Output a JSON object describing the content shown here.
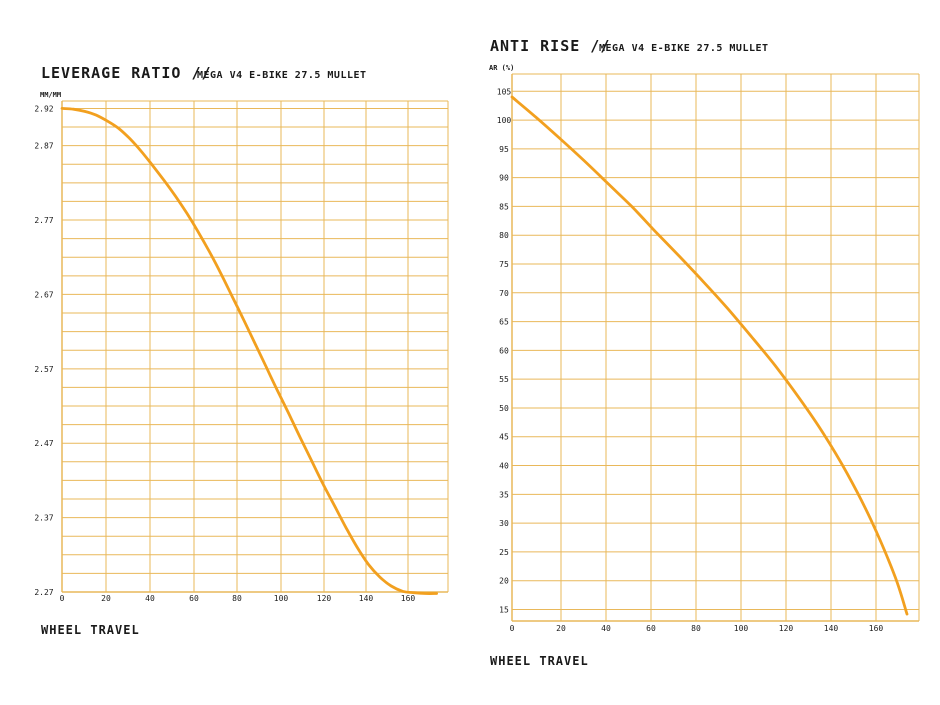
{
  "colors": {
    "curve": "#f2a01f",
    "grid": "#e9b85a",
    "text": "#1a1a1a",
    "background": "#ffffff"
  },
  "chart_data": [
    {
      "type": "line",
      "title": "LEVERAGE RATIO //",
      "subtitle": "MEGA V4 E-BIKE 27.5 MULLET",
      "xlabel": "WHEEL TRAVEL",
      "ylabel": "MM/MM",
      "xlim": [
        0,
        170
      ],
      "ylim": [
        2.27,
        2.93
      ],
      "x_ticks": [
        "0",
        "20",
        "40",
        "60",
        "80",
        "100",
        "120",
        "140",
        "160"
      ],
      "y_ticks": [
        "2.27",
        "2.37",
        "2.47",
        "2.57",
        "2.67",
        "2.77",
        "2.87",
        "2.92"
      ],
      "grid": true,
      "series": [
        {
          "x": [
            0,
            5,
            10,
            15,
            20,
            25,
            30,
            35,
            40,
            45,
            50,
            55,
            60,
            65,
            70,
            75,
            80,
            85,
            90,
            95,
            100,
            105,
            110,
            115,
            120,
            125,
            130,
            135,
            140,
            145,
            150,
            155,
            160,
            165
          ],
          "values": [
            2.92,
            2.919,
            2.916,
            2.911,
            2.903,
            2.893,
            2.879,
            2.862,
            2.843,
            2.823,
            2.802,
            2.779,
            2.754,
            2.727,
            2.698,
            2.667,
            2.636,
            2.604,
            2.572,
            2.54,
            2.509,
            2.477,
            2.446,
            2.415,
            2.386,
            2.357,
            2.33,
            2.307,
            2.29,
            2.278,
            2.271,
            2.269,
            2.268,
            2.268
          ]
        }
      ]
    },
    {
      "type": "line",
      "title": "ANTI RISE //",
      "subtitle": "MEGA V4 E-BIKE 27.5 MULLET",
      "xlabel": "WHEEL TRAVEL",
      "ylabel": "AR (%)",
      "xlim": [
        0,
        170
      ],
      "ylim": [
        13,
        108
      ],
      "x_ticks": [
        "0",
        "20",
        "40",
        "60",
        "80",
        "100",
        "120",
        "140",
        "160"
      ],
      "y_ticks": [
        "15",
        "20",
        "25",
        "30",
        "35",
        "40",
        "45",
        "50",
        "55",
        "60",
        "65",
        "70",
        "75",
        "80",
        "85",
        "90",
        "95",
        "100",
        "105"
      ],
      "grid": true,
      "series": [
        {
          "x": [
            0,
            10,
            20,
            30,
            40,
            50,
            60,
            70,
            80,
            90,
            100,
            110,
            120,
            130,
            140,
            150,
            160,
            165
          ],
          "values": [
            104,
            100.5,
            96.8,
            93,
            89,
            85,
            80.6,
            76.3,
            71.9,
            67.3,
            62.4,
            57.3,
            51.7,
            45.6,
            38.6,
            30.5,
            20.7,
            14.2
          ]
        }
      ]
    }
  ]
}
